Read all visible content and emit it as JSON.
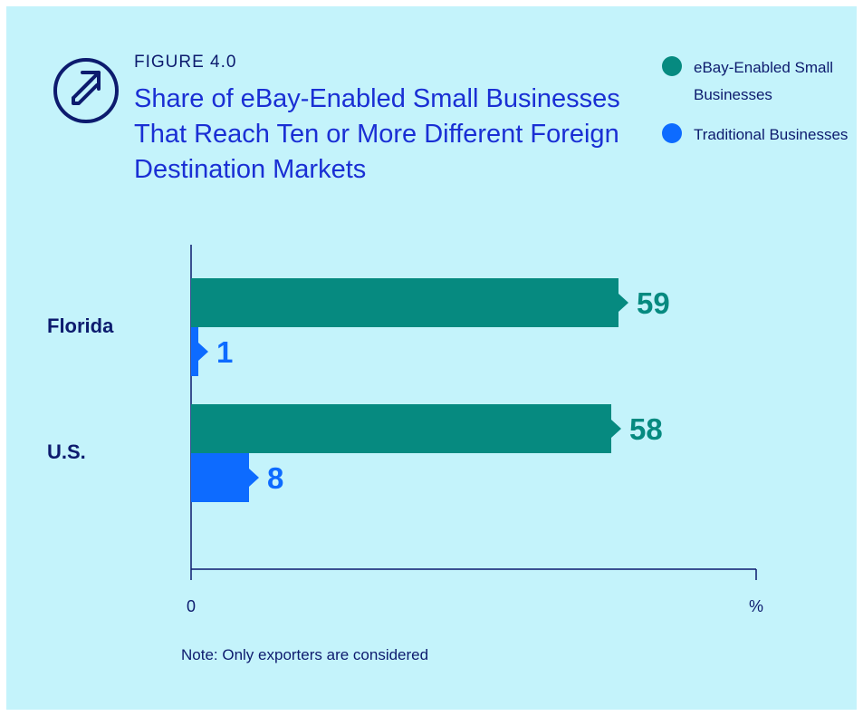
{
  "figure_label": "FIGURE 4.0",
  "title": "Share of eBay-Enabled Small Businesses That Reach Ten or More Different Foreign Destination Markets",
  "logo_icon": "arrow-up-right-circle-icon",
  "note": "Note: Only exporters are considered",
  "colors": {
    "background": "#c4f3fb",
    "ebay": "#068a80",
    "traditional": "#0d6bff",
    "dark": "#0d1b6e",
    "title": "#1a2fd4"
  },
  "legend": [
    {
      "label": "eBay-Enabled Small Businesses",
      "color": "#068a80"
    },
    {
      "label": "Traditional Businesses",
      "color": "#0d6bff"
    }
  ],
  "chart_data": {
    "type": "bar",
    "orientation": "horizontal",
    "categories": [
      "Florida",
      "U.S."
    ],
    "series": [
      {
        "name": "eBay-Enabled Small Businesses",
        "values": [
          59,
          58
        ],
        "color": "#068a80"
      },
      {
        "name": "Traditional Businesses",
        "values": [
          1,
          8
        ],
        "color": "#0d6bff"
      }
    ],
    "x_ticks": [
      "0",
      "%"
    ],
    "xlim": [
      0,
      78
    ],
    "xlabel": "%",
    "ylabel": "",
    "grid": false,
    "legend_position": "top-right",
    "data_labels": true
  }
}
